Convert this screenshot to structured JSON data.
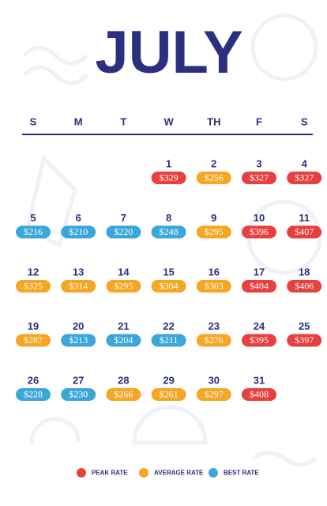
{
  "calendar": {
    "title": "JULY",
    "weekdays": [
      "S",
      "M",
      "T",
      "W",
      "TH",
      "F",
      "S"
    ],
    "weeks": [
      [
        null,
        null,
        null,
        {
          "day": 1,
          "rate": "$329",
          "rate_type": "PEAK RATE"
        },
        {
          "day": 2,
          "rate": "$256",
          "rate_type": "AVERAGE RATE"
        },
        {
          "day": 3,
          "rate": "$327",
          "rate_type": "PEAK RATE"
        },
        {
          "day": 4,
          "rate": "$327",
          "rate_type": "PEAK RATE"
        }
      ],
      [
        {
          "day": 5,
          "rate": "$216",
          "rate_type": "BEST RATE"
        },
        {
          "day": 6,
          "rate": "$210",
          "rate_type": "BEST RATE"
        },
        {
          "day": 7,
          "rate": "$220",
          "rate_type": "BEST RATE"
        },
        {
          "day": 8,
          "rate": "$248",
          "rate_type": "BEST RATE"
        },
        {
          "day": 9,
          "rate": "$295",
          "rate_type": "AVERAGE RATE"
        },
        {
          "day": 10,
          "rate": "$396",
          "rate_type": "PEAK RATE"
        },
        {
          "day": 11,
          "rate": "$407",
          "rate_type": "PEAK RATE"
        }
      ],
      [
        {
          "day": 12,
          "rate": "$325",
          "rate_type": "AVERAGE RATE"
        },
        {
          "day": 13,
          "rate": "$314",
          "rate_type": "AVERAGE RATE"
        },
        {
          "day": 14,
          "rate": "$295",
          "rate_type": "AVERAGE RATE"
        },
        {
          "day": 15,
          "rate": "$304",
          "rate_type": "AVERAGE RATE"
        },
        {
          "day": 16,
          "rate": "$303",
          "rate_type": "AVERAGE RATE"
        },
        {
          "day": 17,
          "rate": "$404",
          "rate_type": "PEAK RATE"
        },
        {
          "day": 18,
          "rate": "$406",
          "rate_type": "PEAK RATE"
        }
      ],
      [
        {
          "day": 19,
          "rate": "$287",
          "rate_type": "AVERAGE RATE"
        },
        {
          "day": 20,
          "rate": "$213",
          "rate_type": "BEST RATE"
        },
        {
          "day": 21,
          "rate": "$204",
          "rate_type": "BEST RATE"
        },
        {
          "day": 22,
          "rate": "$211",
          "rate_type": "BEST RATE"
        },
        {
          "day": 23,
          "rate": "$276",
          "rate_type": "AVERAGE RATE"
        },
        {
          "day": 24,
          "rate": "$395",
          "rate_type": "PEAK RATE"
        },
        {
          "day": 25,
          "rate": "$397",
          "rate_type": "PEAK RATE"
        }
      ],
      [
        {
          "day": 26,
          "rate": "$228",
          "rate_type": "BEST RATE"
        },
        {
          "day": 27,
          "rate": "$230",
          "rate_type": "BEST RATE"
        },
        {
          "day": 28,
          "rate": "$266",
          "rate_type": "AVERAGE RATE"
        },
        {
          "day": 29,
          "rate": "$261",
          "rate_type": "AVERAGE RATE"
        },
        {
          "day": 30,
          "rate": "$297",
          "rate_type": "AVERAGE RATE"
        },
        {
          "day": 31,
          "rate": "$408",
          "rate_type": "PEAK RATE"
        },
        null
      ]
    ],
    "legend": [
      {
        "label": "PEAK RATE",
        "color": "#e8403f"
      },
      {
        "label": "AVERAGE RATE",
        "color": "#f5a623"
      },
      {
        "label": "BEST RATE",
        "color": "#3ba6dc"
      }
    ]
  }
}
